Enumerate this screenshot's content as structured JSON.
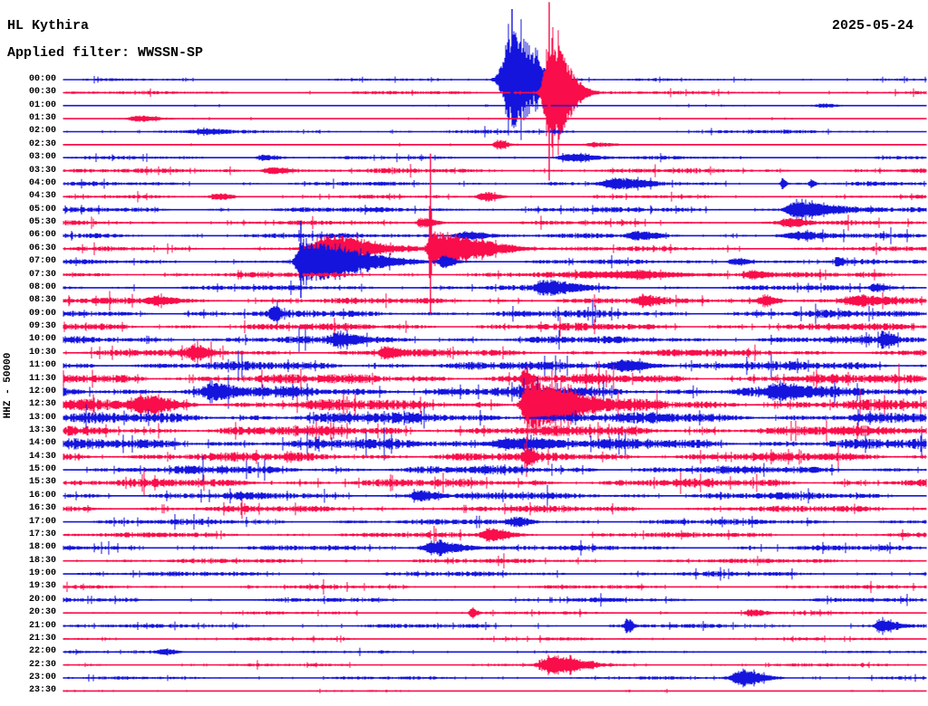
{
  "header": {
    "station": "HL Kythira",
    "filter_label": "Applied filter: WWSSN-SP",
    "date": "2025-05-24"
  },
  "y_axis": {
    "label": "HHZ - 50000"
  },
  "colors": {
    "trace_blue": "#1414dd",
    "trace_red": "#f90d4a",
    "background": "#ffffff",
    "text": "#000000"
  },
  "chart_data": {
    "type": "line",
    "subtype": "seismogram-helicorder",
    "title": "HL Kythira helicorder, vertical channel HHZ, scale 50000, filter WWSSN-SP, 2025-05-24",
    "x_axis": "minutes within each 30-minute row (0-30)",
    "row_interval_minutes": 30,
    "time_range": "00:00 - 23:30",
    "row_color_rule": "rows on the hour are blue, rows on the half hour are red",
    "rows": [
      {
        "time": "00:00",
        "color": "blue",
        "noise_amp": 1.0,
        "events": [
          {
            "minute": 15.6,
            "amp": 55,
            "rise_min": 0.25,
            "decay_min": 0.7,
            "spike_up": 78,
            "spike_down": 42
          }
        ]
      },
      {
        "time": "00:30",
        "color": "red",
        "noise_amp": 1.3,
        "events": [
          {
            "minute": 16.9,
            "amp": 62,
            "rise_min": 0.15,
            "decay_min": 0.6,
            "spike_up": 100,
            "spike_down": 97
          }
        ]
      },
      {
        "time": "01:00",
        "color": "blue",
        "noise_amp": 0.7,
        "events": [
          {
            "minute": 26.5,
            "amp": 2,
            "rise_min": 0.3,
            "decay_min": 0.4
          }
        ]
      },
      {
        "time": "01:30",
        "color": "red",
        "noise_amp": 0.7,
        "events": [
          {
            "minute": 2.7,
            "amp": 3,
            "rise_min": 0.3,
            "decay_min": 0.5
          }
        ]
      },
      {
        "time": "02:00",
        "color": "blue",
        "noise_amp": 1.4,
        "events": [
          {
            "minute": 4.9,
            "amp": 2.5,
            "rise_min": 0.3,
            "decay_min": 0.5
          }
        ]
      },
      {
        "time": "02:30",
        "color": "red",
        "noise_amp": 0.6,
        "events": [
          {
            "minute": 15.1,
            "amp": 5,
            "rise_min": 0.1,
            "decay_min": 0.3
          },
          {
            "minute": 18.5,
            "amp": 2.5,
            "rise_min": 0.3,
            "decay_min": 0.6
          }
        ]
      },
      {
        "time": "03:00",
        "color": "blue",
        "noise_amp": 1.3,
        "events": [
          {
            "minute": 17.6,
            "amp": 4,
            "rise_min": 0.3,
            "decay_min": 0.7
          },
          {
            "minute": 7.0,
            "amp": 2.5,
            "rise_min": 0.2,
            "decay_min": 0.4
          }
        ]
      },
      {
        "time": "03:30",
        "color": "red",
        "noise_amp": 1.8,
        "events": [
          {
            "minute": 7.2,
            "amp": 4,
            "rise_min": 0.2,
            "decay_min": 0.5
          }
        ]
      },
      {
        "time": "04:00",
        "color": "blue",
        "noise_amp": 1.6,
        "events": [
          {
            "minute": 19.2,
            "amp": 5,
            "rise_min": 0.3,
            "decay_min": 0.8
          },
          {
            "minute": 25.0,
            "amp": 6,
            "rise_min": 0.05,
            "decay_min": 0.1
          },
          {
            "minute": 26.0,
            "amp": 5,
            "rise_min": 0.05,
            "decay_min": 0.1
          }
        ]
      },
      {
        "time": "04:30",
        "color": "red",
        "noise_amp": 1.3,
        "events": [
          {
            "minute": 14.7,
            "amp": 5,
            "rise_min": 0.2,
            "decay_min": 0.4
          },
          {
            "minute": 5.4,
            "amp": 3,
            "rise_min": 0.2,
            "decay_min": 0.4
          }
        ]
      },
      {
        "time": "05:00",
        "color": "blue",
        "noise_amp": 2.0,
        "events": [
          {
            "minute": 25.4,
            "amp": 9,
            "rise_min": 0.2,
            "decay_min": 1.0
          }
        ]
      },
      {
        "time": "05:30",
        "color": "red",
        "noise_amp": 1.7,
        "events": [
          {
            "minute": 12.5,
            "amp": 5,
            "rise_min": 0.15,
            "decay_min": 0.4
          },
          {
            "minute": 25.2,
            "amp": 4,
            "rise_min": 0.2,
            "decay_min": 0.5
          }
        ]
      },
      {
        "time": "06:00",
        "color": "blue",
        "noise_amp": 2.0,
        "events": [
          {
            "minute": 14.0,
            "amp": 4,
            "rise_min": 0.3,
            "decay_min": 0.6
          },
          {
            "minute": 19.9,
            "amp": 4,
            "rise_min": 0.2,
            "decay_min": 0.5
          },
          {
            "minute": 25.4,
            "amp": 3,
            "rise_min": 0.3,
            "decay_min": 0.7
          }
        ]
      },
      {
        "time": "06:30",
        "color": "red",
        "noise_amp": 1.8,
        "events": [
          {
            "minute": 9.3,
            "amp": 13,
            "rise_min": 0.5,
            "decay_min": 1.2
          },
          {
            "minute": 12.76,
            "amp": 18,
            "rise_min": 0.08,
            "decay_min": 1.6,
            "spike_up": 105,
            "spike_down": 72
          }
        ]
      },
      {
        "time": "07:00",
        "color": "blue",
        "noise_amp": 1.8,
        "events": [
          {
            "minute": 8.25,
            "amp": 20,
            "rise_min": 0.12,
            "decay_min": 1.8,
            "spike_up": 45,
            "spike_down": 40
          },
          {
            "minute": 13.2,
            "amp": 7,
            "rise_min": 0.1,
            "decay_min": 0.3
          },
          {
            "minute": 23.4,
            "amp": 4,
            "rise_min": 0.2,
            "decay_min": 0.4
          },
          {
            "minute": 26.9,
            "amp": 5,
            "rise_min": 0.05,
            "decay_min": 0.15
          }
        ]
      },
      {
        "time": "07:30",
        "color": "red",
        "noise_amp": 2.0,
        "events": [
          {
            "minute": 20.0,
            "amp": 3.5,
            "rise_min": 1.5,
            "decay_min": 1.5
          },
          {
            "minute": 24.0,
            "amp": 4,
            "rise_min": 0.2,
            "decay_min": 0.4
          }
        ]
      },
      {
        "time": "08:00",
        "color": "blue",
        "noise_amp": 2.0,
        "events": [
          {
            "minute": 16.8,
            "amp": 7,
            "rise_min": 0.25,
            "decay_min": 0.8
          },
          {
            "minute": 28.2,
            "amp": 4,
            "rise_min": 0.1,
            "decay_min": 0.3
          }
        ]
      },
      {
        "time": "08:30",
        "color": "red",
        "noise_amp": 2.4,
        "events": [
          {
            "minute": 3.2,
            "amp": 4,
            "rise_min": 0.2,
            "decay_min": 0.5
          },
          {
            "minute": 20.2,
            "amp": 4,
            "rise_min": 0.2,
            "decay_min": 0.4
          },
          {
            "minute": 24.4,
            "amp": 5,
            "rise_min": 0.2,
            "decay_min": 0.4
          },
          {
            "minute": 27.6,
            "amp": 5,
            "rise_min": 0.3,
            "decay_min": 0.6
          }
        ]
      },
      {
        "time": "09:00",
        "color": "blue",
        "noise_amp": 2.8,
        "events": [
          {
            "minute": 7.3,
            "amp": 6,
            "rise_min": 0.08,
            "decay_min": 0.2
          }
        ]
      },
      {
        "time": "09:30",
        "color": "red",
        "noise_amp": 2.8,
        "events": []
      },
      {
        "time": "10:00",
        "color": "blue",
        "noise_amp": 2.8,
        "events": [
          {
            "minute": 9.6,
            "amp": 7,
            "rise_min": 0.2,
            "decay_min": 0.5
          },
          {
            "minute": 28.5,
            "amp": 8,
            "rise_min": 0.08,
            "decay_min": 0.3
          }
        ]
      },
      {
        "time": "10:30",
        "color": "red",
        "noise_amp": 2.8,
        "events": [
          {
            "minute": 4.5,
            "amp": 6,
            "rise_min": 0.15,
            "decay_min": 0.4
          },
          {
            "minute": 11.2,
            "amp": 6,
            "rise_min": 0.15,
            "decay_min": 0.4
          }
        ]
      },
      {
        "time": "11:00",
        "color": "blue",
        "noise_amp": 3.4,
        "events": [
          {
            "minute": 19.5,
            "amp": 5,
            "rise_min": 0.4,
            "decay_min": 0.8
          }
        ]
      },
      {
        "time": "11:30",
        "color": "red",
        "noise_amp": 3.8,
        "events": [
          {
            "minute": 16.0,
            "amp": 10,
            "rise_min": 0.05,
            "decay_min": 0.15
          }
        ]
      },
      {
        "time": "12:00",
        "color": "blue",
        "noise_amp": 4.2,
        "events": [
          {
            "minute": 5.2,
            "amp": 7,
            "rise_min": 0.2,
            "decay_min": 0.5
          },
          {
            "minute": 24.9,
            "amp": 6,
            "rise_min": 0.3,
            "decay_min": 0.7
          }
        ]
      },
      {
        "time": "12:30",
        "color": "red",
        "noise_amp": 4.2,
        "events": [
          {
            "minute": 2.8,
            "amp": 8,
            "rise_min": 0.3,
            "decay_min": 0.7
          },
          {
            "minute": 16.14,
            "amp": 26,
            "rise_min": 0.15,
            "decay_min": 1.3,
            "spike_up": 43,
            "spike_down": 40
          }
        ]
      },
      {
        "time": "13:00",
        "color": "blue",
        "noise_amp": 4.2,
        "events": []
      },
      {
        "time": "13:30",
        "color": "red",
        "noise_amp": 4.0,
        "events": []
      },
      {
        "time": "14:00",
        "color": "blue",
        "noise_amp": 4.0,
        "events": [
          {
            "minute": 15.6,
            "amp": 6,
            "rise_min": 0.5,
            "decay_min": 1.0
          }
        ]
      },
      {
        "time": "14:30",
        "color": "red",
        "noise_amp": 3.6,
        "events": [
          {
            "minute": 16.1,
            "amp": 7,
            "rise_min": 0.08,
            "decay_min": 0.2
          }
        ]
      },
      {
        "time": "15:00",
        "color": "blue",
        "noise_amp": 3.2,
        "events": []
      },
      {
        "time": "15:30",
        "color": "red",
        "noise_amp": 3.2,
        "events": []
      },
      {
        "time": "16:00",
        "color": "blue",
        "noise_amp": 2.8,
        "events": [
          {
            "minute": 12.4,
            "amp": 5,
            "rise_min": 0.2,
            "decay_min": 0.5
          }
        ]
      },
      {
        "time": "16:30",
        "color": "red",
        "noise_amp": 2.5,
        "events": []
      },
      {
        "time": "17:00",
        "color": "blue",
        "noise_amp": 2.2,
        "events": [
          {
            "minute": 15.8,
            "amp": 4,
            "rise_min": 0.2,
            "decay_min": 0.4
          }
        ]
      },
      {
        "time": "17:30",
        "color": "red",
        "noise_amp": 2.0,
        "events": [
          {
            "minute": 14.8,
            "amp": 7,
            "rise_min": 0.2,
            "decay_min": 0.5
          }
        ]
      },
      {
        "time": "18:00",
        "color": "blue",
        "noise_amp": 2.0,
        "events": [
          {
            "minute": 12.9,
            "amp": 7,
            "rise_min": 0.25,
            "decay_min": 0.9
          }
        ]
      },
      {
        "time": "18:30",
        "color": "red",
        "noise_amp": 1.8,
        "events": []
      },
      {
        "time": "19:00",
        "color": "blue",
        "noise_amp": 1.8,
        "events": []
      },
      {
        "time": "19:30",
        "color": "red",
        "noise_amp": 1.5,
        "events": []
      },
      {
        "time": "20:00",
        "color": "blue",
        "noise_amp": 1.6,
        "events": []
      },
      {
        "time": "20:30",
        "color": "red",
        "noise_amp": 1.2,
        "events": [
          {
            "minute": 14.2,
            "amp": 5,
            "rise_min": 0.06,
            "decay_min": 0.15
          },
          {
            "minute": 24.0,
            "amp": 3,
            "rise_min": 0.2,
            "decay_min": 0.4
          }
        ]
      },
      {
        "time": "21:00",
        "color": "blue",
        "noise_amp": 1.6,
        "events": [
          {
            "minute": 19.6,
            "amp": 8,
            "rise_min": 0.06,
            "decay_min": 0.15
          },
          {
            "minute": 28.4,
            "amp": 7,
            "rise_min": 0.1,
            "decay_min": 0.5
          }
        ]
      },
      {
        "time": "21:30",
        "color": "red",
        "noise_amp": 1.2,
        "events": []
      },
      {
        "time": "22:00",
        "color": "blue",
        "noise_amp": 1.0,
        "events": [
          {
            "minute": 3.5,
            "amp": 3,
            "rise_min": 0.2,
            "decay_min": 0.4
          }
        ]
      },
      {
        "time": "22:30",
        "color": "red",
        "noise_amp": 1.2,
        "events": [
          {
            "minute": 17.0,
            "amp": 9,
            "rise_min": 0.3,
            "decay_min": 0.9
          }
        ]
      },
      {
        "time": "23:00",
        "color": "blue",
        "noise_amp": 1.2,
        "events": [
          {
            "minute": 23.6,
            "amp": 8,
            "rise_min": 0.25,
            "decay_min": 0.7
          }
        ]
      },
      {
        "time": "23:30",
        "color": "red",
        "noise_amp": 0.9,
        "events": []
      }
    ]
  }
}
